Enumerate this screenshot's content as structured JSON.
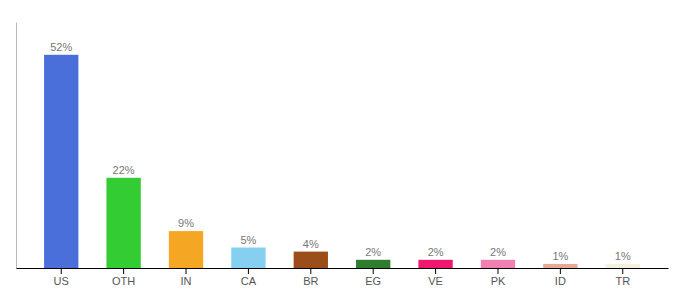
{
  "chart_data": {
    "type": "bar",
    "categories": [
      "US",
      "OTH",
      "IN",
      "CA",
      "BR",
      "EG",
      "VE",
      "PK",
      "ID",
      "TR"
    ],
    "values": [
      52,
      22,
      9,
      5,
      4,
      2,
      2,
      2,
      1,
      1
    ],
    "value_labels": [
      "52%",
      "22%",
      "9%",
      "5%",
      "4%",
      "2%",
      "2%",
      "2%",
      "1%",
      "1%"
    ],
    "colors": [
      "#4a6fdb",
      "#33cc33",
      "#f5a623",
      "#85d0f0",
      "#9b4e1a",
      "#2d7d2d",
      "#f0186e",
      "#f080b0",
      "#e8a898",
      "#f5f0dc"
    ],
    "ylim": [
      0,
      60
    ],
    "data_labels": true,
    "tick_labels": "x"
  }
}
